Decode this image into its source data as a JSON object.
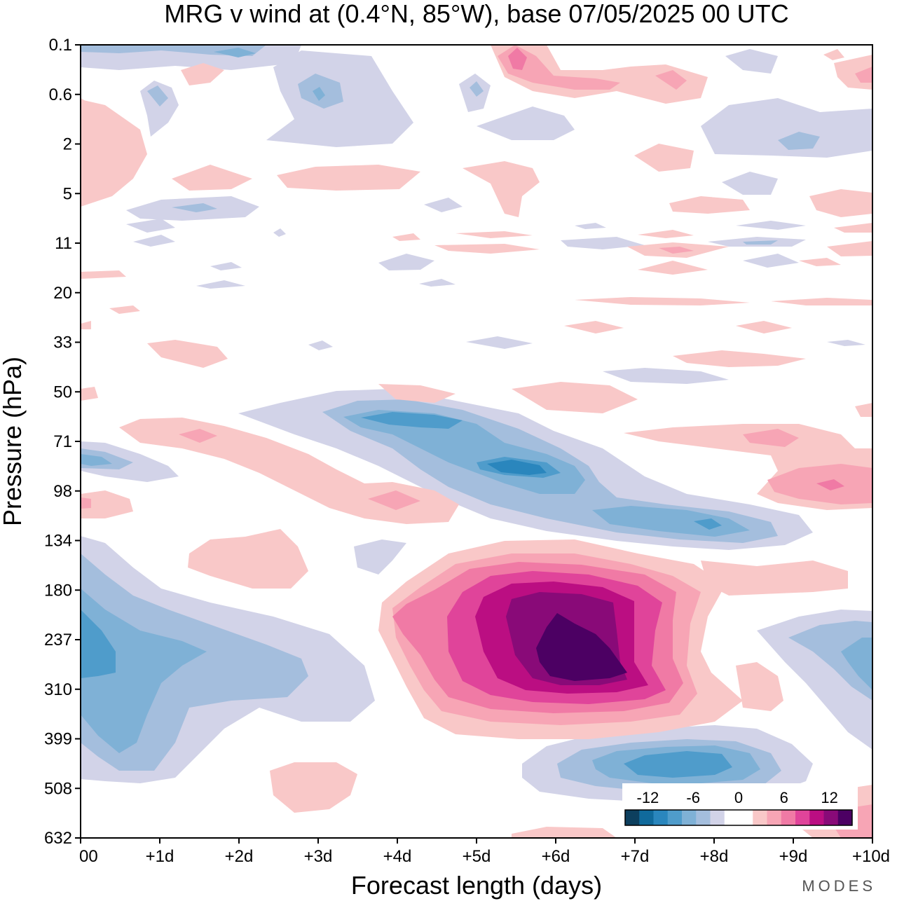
{
  "chart_data": {
    "type": "heatmap",
    "title": "MRG v wind at (0.4°N, 85°W),  base 07/05/2025  00 UTC",
    "xlabel": "Forecast length (days)",
    "ylabel": "Pressure (hPa)",
    "x_ticks": [
      "00",
      "+1d",
      "+2d",
      "+3d",
      "+4d",
      "+5d",
      "+6d",
      "+7d",
      "+8d",
      "+9d",
      "+10d"
    ],
    "xlim": [
      0,
      10
    ],
    "y_ticks": [
      "0.1",
      "0.6",
      "2",
      "5",
      "11",
      "20",
      "33",
      "50",
      "71",
      "98",
      "134",
      "180",
      "237",
      "310",
      "399",
      "508",
      "632"
    ],
    "colorbar": {
      "labels": [
        "-12",
        "-6",
        "0",
        "6",
        "12"
      ],
      "levels": [
        -15,
        -13,
        -11,
        -9,
        -7,
        -5,
        -3,
        -1,
        1,
        3,
        5,
        7,
        9,
        11,
        13,
        15
      ],
      "colors": [
        "#0d3f5e",
        "#106a9c",
        "#2a86bd",
        "#4f9ccb",
        "#7fb1d6",
        "#a4bedd",
        "#d2d3e8",
        "#ffffff",
        "#ffffff",
        "#f9c8c8",
        "#f7a5b5",
        "#f07aa5",
        "#e0449a",
        "#bb0e82",
        "#890a78",
        "#4c0063"
      ]
    },
    "features": [
      {
        "name": "upper-tropospheric positive maximum",
        "x": 6.4,
        "y": "250",
        "value": 15
      },
      {
        "name": "negative band 50-134 hPa",
        "x": 6.0,
        "y": "85",
        "value": -11
      },
      {
        "name": "negative minimum near 450 hPa",
        "x": 7.8,
        "y": "450",
        "value": -9
      },
      {
        "name": "negative region at base time",
        "x": 0.3,
        "y": "250",
        "value": -9
      },
      {
        "name": "positive region near 85 hPa",
        "x": 9.5,
        "y": "95",
        "value": 7
      }
    ],
    "grid": false,
    "legend": "bottom-right"
  },
  "brand": "MODES",
  "colors": {
    "neg_light": "#d2d3e8",
    "neg_mid": "#a4bedd",
    "neg_strong": "#7fb1d6",
    "neg_deep": "#4f9ccb",
    "neg_deeper": "#2a86bd",
    "pos_light": "#f9c8c8",
    "pos_mid": "#f7a5b5",
    "pos_strong": "#f07aa5",
    "pos_deep": "#e0449a",
    "pos_deeper": "#bb0e82",
    "pos_max": "#890a78",
    "pos_extreme": "#4c0063"
  }
}
